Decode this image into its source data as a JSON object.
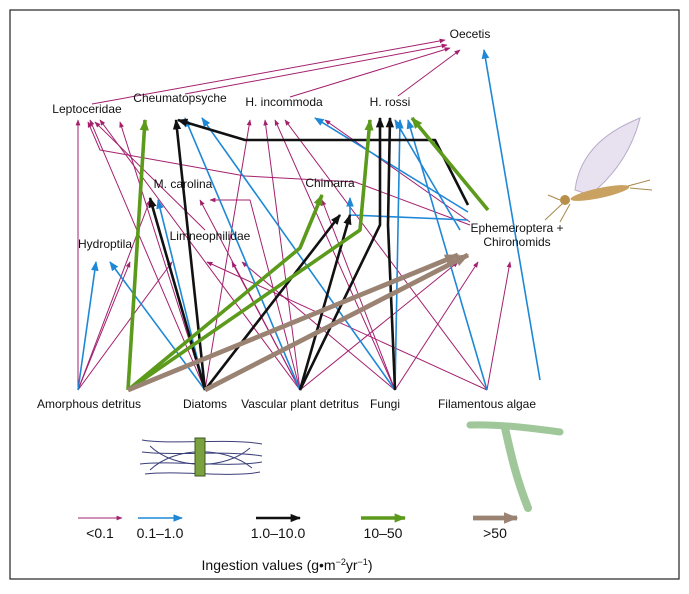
{
  "nodes": [
    {
      "label": "Oecetis"
    },
    {
      "label": "Leptoceridae"
    },
    {
      "label": "Cheumatopsyche"
    },
    {
      "label": "H. incommoda"
    },
    {
      "label": "H. rossi"
    },
    {
      "label": "M. carolina"
    },
    {
      "label": "Chimarra"
    },
    {
      "label": [
        "Ephemeroptera +",
        "Chironomids"
      ]
    },
    {
      "label": "Hydroptila"
    },
    {
      "label": "Limneophilidae"
    },
    {
      "label": "Amorphous detritus"
    },
    {
      "label": "Diatoms"
    },
    {
      "label": "Vascular plant detritus"
    },
    {
      "label": "Fungi"
    },
    {
      "label": "Filamentous algae"
    }
  ],
  "legend": {
    "items": [
      "<0.1",
      "0.1–1.0",
      "1.0–10.0",
      "10–50",
      ">50"
    ],
    "title": [
      "Ingestion values (g•m",
      "−2",
      "yr",
      "−1",
      ")"
    ]
  }
}
